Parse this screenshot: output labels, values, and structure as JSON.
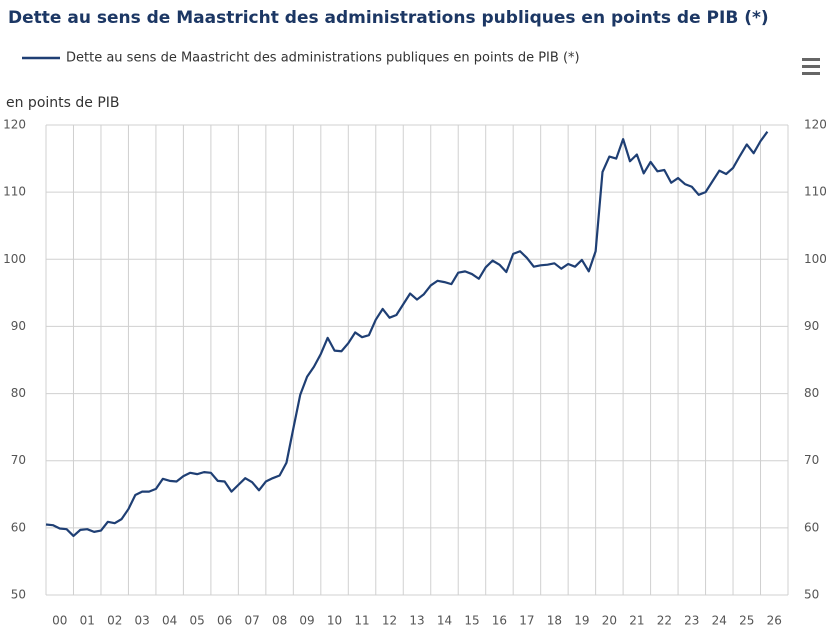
{
  "chart_data": {
    "type": "line",
    "title": "Dette au sens de Maastricht des administrations publiques en points de PIB (*)",
    "y_label": "en points de PIB",
    "xlim": [
      2000,
      2027
    ],
    "xticks": [
      {
        "value": 2000,
        "label": "00"
      },
      {
        "value": 2001,
        "label": "01"
      },
      {
        "value": 2002,
        "label": "02"
      },
      {
        "value": 2003,
        "label": "03"
      },
      {
        "value": 2004,
        "label": "04"
      },
      {
        "value": 2005,
        "label": "05"
      },
      {
        "value": 2006,
        "label": "06"
      },
      {
        "value": 2007,
        "label": "07"
      },
      {
        "value": 2008,
        "label": "08"
      },
      {
        "value": 2009,
        "label": "09"
      },
      {
        "value": 2010,
        "label": "10"
      },
      {
        "value": 2011,
        "label": "11"
      },
      {
        "value": 2012,
        "label": "12"
      },
      {
        "value": 2013,
        "label": "13"
      },
      {
        "value": 2014,
        "label": "14"
      },
      {
        "value": 2015,
        "label": "15"
      },
      {
        "value": 2016,
        "label": "16"
      },
      {
        "value": 2017,
        "label": "17"
      },
      {
        "value": 2018,
        "label": "18"
      },
      {
        "value": 2019,
        "label": "19"
      },
      {
        "value": 2020,
        "label": "20"
      },
      {
        "value": 2021,
        "label": "21"
      },
      {
        "value": 2022,
        "label": "22"
      },
      {
        "value": 2023,
        "label": "23"
      },
      {
        "value": 2024,
        "label": "24"
      },
      {
        "value": 2025,
        "label": "25"
      },
      {
        "value": 2026,
        "label": "26"
      }
    ],
    "ylim": [
      50,
      120
    ],
    "yticks": [
      50,
      60,
      70,
      80,
      90,
      100,
      110,
      120
    ],
    "y2lim": [
      50,
      120
    ],
    "y2ticks": [
      50,
      60,
      70,
      80,
      90,
      100,
      110,
      120
    ],
    "grid": true,
    "x": [
      2000,
      2000.25,
      2000.5,
      2000.75,
      2001,
      2001.25,
      2001.5,
      2001.75,
      2002,
      2002.25,
      2002.5,
      2002.75,
      2003,
      2003.25,
      2003.5,
      2003.75,
      2004,
      2004.25,
      2004.5,
      2004.75,
      2005,
      2005.25,
      2005.5,
      2005.75,
      2006,
      2006.25,
      2006.5,
      2006.75,
      2007,
      2007.25,
      2007.5,
      2007.75,
      2008,
      2008.25,
      2008.5,
      2008.75,
      2009,
      2009.25,
      2009.5,
      2009.75,
      2010,
      2010.25,
      2010.5,
      2010.75,
      2011,
      2011.25,
      2011.5,
      2011.75,
      2012,
      2012.25,
      2012.5,
      2012.75,
      2013,
      2013.25,
      2013.5,
      2013.75,
      2014,
      2014.25,
      2014.5,
      2014.75,
      2015,
      2015.25,
      2015.5,
      2015.75,
      2016,
      2016.25,
      2016.5,
      2016.75,
      2017,
      2017.25,
      2017.5,
      2017.75,
      2018,
      2018.25,
      2018.5,
      2018.75,
      2019,
      2019.25,
      2019.5,
      2019.75,
      2020,
      2020.25,
      2020.5,
      2020.75,
      2021,
      2021.25,
      2021.5,
      2021.75,
      2022,
      2022.25,
      2022.5,
      2022.75,
      2023,
      2023.25,
      2023.5,
      2023.75,
      2024,
      2024.25,
      2024.5,
      2024.75,
      2025,
      2025.25,
      2025.5,
      2025.75,
      2026,
      2026.25
    ],
    "series": [
      {
        "name": "Dette au sens de Maastricht des administrations publiques en points de PIB (*)",
        "color": "#1f3f74",
        "values": [
          60.5,
          60.4,
          59.9,
          59.8,
          58.8,
          59.7,
          59.8,
          59.4,
          59.6,
          60.9,
          60.7,
          61.3,
          62.8,
          64.9,
          65.4,
          65.4,
          65.8,
          67.3,
          67.0,
          66.9,
          67.7,
          68.2,
          68.0,
          68.3,
          68.2,
          67.0,
          66.9,
          65.4,
          66.4,
          67.4,
          66.8,
          65.6,
          66.9,
          67.4,
          67.8,
          69.7,
          74.8,
          79.8,
          82.5,
          84.0,
          85.9,
          88.3,
          86.4,
          86.3,
          87.5,
          89.1,
          88.4,
          88.7,
          91.0,
          92.6,
          91.3,
          91.7,
          93.3,
          94.9,
          94.0,
          94.8,
          96.1,
          96.8,
          96.6,
          96.3,
          98.0,
          98.2,
          97.8,
          97.1,
          98.8,
          99.8,
          99.2,
          98.1,
          100.8,
          101.2,
          100.2,
          98.9,
          99.1,
          99.2,
          99.4,
          98.6,
          99.3,
          98.9,
          99.9,
          98.2,
          101.2,
          113.0,
          115.3,
          115.0,
          117.9,
          114.6,
          115.6,
          112.8,
          114.5,
          113.1,
          113.3,
          111.4,
          112.1,
          111.2,
          110.8,
          109.6,
          110.0,
          111.6,
          113.2,
          112.7,
          113.6,
          115.4,
          117.1,
          115.8,
          117.6,
          119.0
        ]
      }
    ]
  }
}
